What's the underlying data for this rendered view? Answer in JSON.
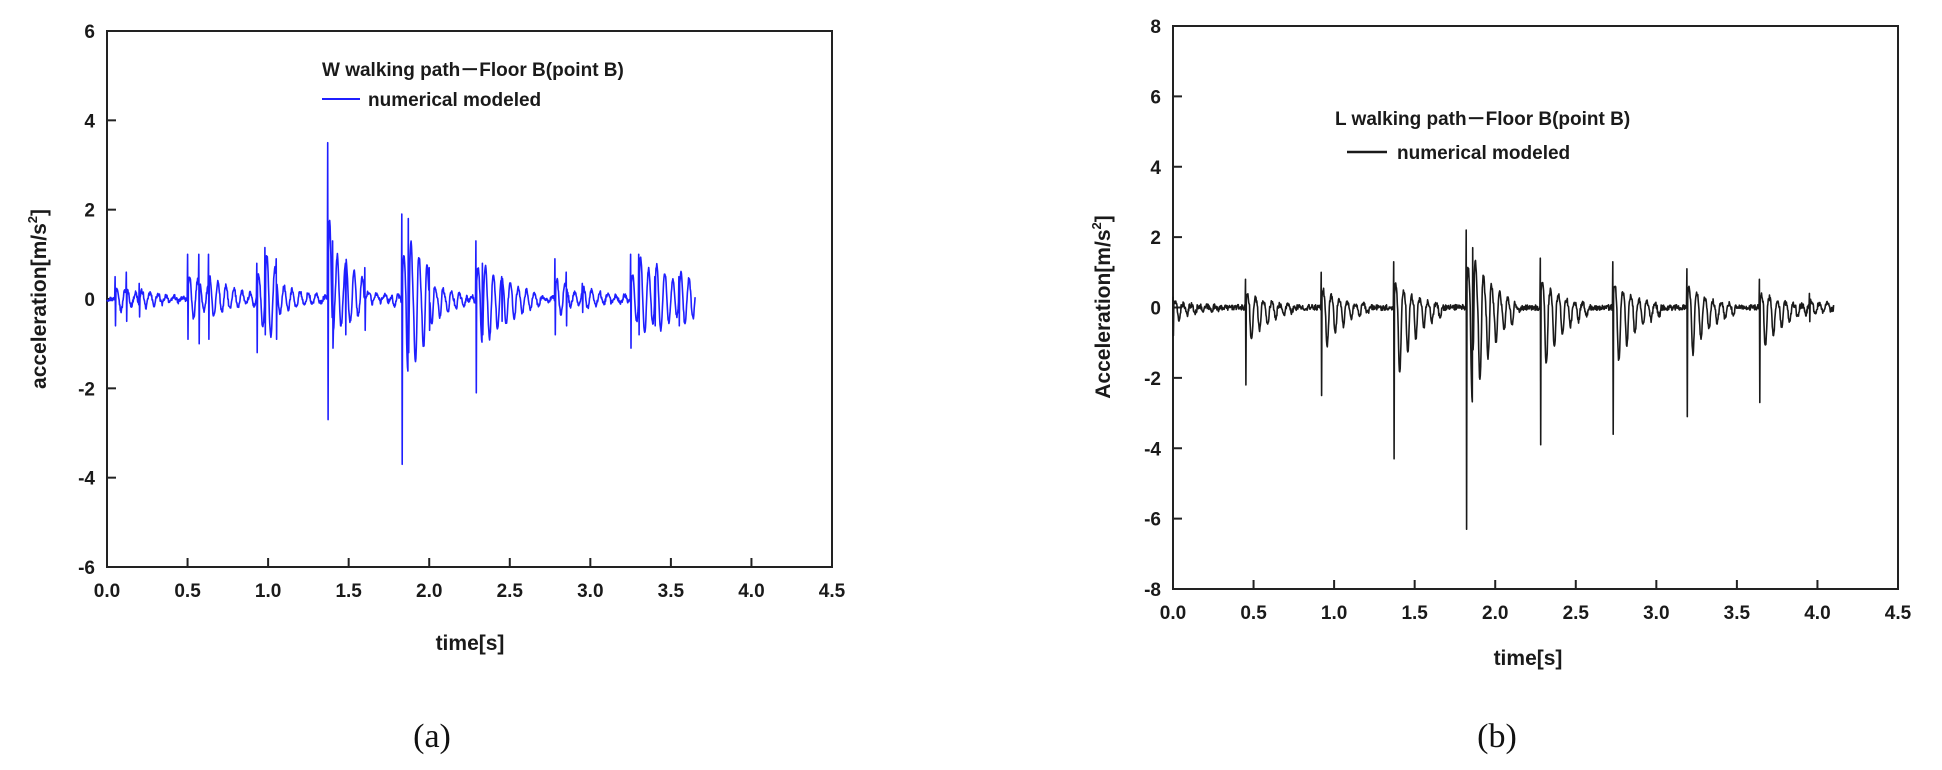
{
  "chart_data": [
    {
      "type": "line",
      "panel_label": "(a)",
      "xlabel": "time[s]",
      "ylabel": "acceleration[m/s²]",
      "ylabel_parts": {
        "main": "acceleration[m/s",
        "sup": "2",
        "end": "]"
      },
      "xlim": [
        0.0,
        4.5
      ],
      "ylim": [
        -6,
        6
      ],
      "xticks": [
        "0.0",
        "0.5",
        "1.0",
        "1.5",
        "2.0",
        "2.5",
        "3.0",
        "3.5",
        "4.0",
        "4.5"
      ],
      "yticks": [
        "-6",
        "-4",
        "-2",
        "0",
        "2",
        "4",
        "6"
      ],
      "grid": false,
      "legend_position": "top-center",
      "legend_title": "W walking path－Floor B(point B)",
      "series": [
        {
          "name": "numerical modeled",
          "color": "#1f1fff",
          "x_end": 3.65,
          "noise_amplitude": 0.05,
          "oscillation": {
            "period": 0.05,
            "decay": 0.4
          },
          "events": [
            {
              "t": 0.05,
              "peak": 0.5,
              "trough": -0.6
            },
            {
              "t": 0.12,
              "peak": 0.6,
              "trough": -0.5
            },
            {
              "t": 0.2,
              "peak": 0.35,
              "trough": -0.4
            },
            {
              "t": 0.5,
              "peak": 1.0,
              "trough": -0.9
            },
            {
              "t": 0.57,
              "peak": 1.0,
              "trough": -1.0
            },
            {
              "t": 0.63,
              "peak": 1.0,
              "trough": -0.9
            },
            {
              "t": 0.93,
              "peak": 0.8,
              "trough": -1.2
            },
            {
              "t": 0.98,
              "peak": 1.15,
              "trough": -0.8
            },
            {
              "t": 1.05,
              "peak": 0.9,
              "trough": -0.9
            },
            {
              "t": 1.37,
              "peak": 3.5,
              "trough": -2.7
            },
            {
              "t": 1.4,
              "peak": 1.3,
              "trough": -1.1
            },
            {
              "t": 1.48,
              "peak": 0.8,
              "trough": -0.8
            },
            {
              "t": 1.6,
              "peak": 0.7,
              "trough": -0.7
            },
            {
              "t": 1.83,
              "peak": 1.9,
              "trough": -3.7
            },
            {
              "t": 1.87,
              "peak": 1.8,
              "trough": -1.2
            },
            {
              "t": 2.0,
              "peak": 0.7,
              "trough": -0.7
            },
            {
              "t": 2.29,
              "peak": 1.3,
              "trough": -2.1
            },
            {
              "t": 2.33,
              "peak": 0.8,
              "trough": -0.8
            },
            {
              "t": 2.45,
              "peak": 0.5,
              "trough": -0.5
            },
            {
              "t": 2.78,
              "peak": 0.9,
              "trough": -0.8
            },
            {
              "t": 2.85,
              "peak": 0.6,
              "trough": -0.6
            },
            {
              "t": 2.95,
              "peak": 0.35,
              "trough": -0.3
            },
            {
              "t": 3.25,
              "peak": 1.0,
              "trough": -1.1
            },
            {
              "t": 3.3,
              "peak": 1.0,
              "trough": -0.8
            },
            {
              "t": 3.4,
              "peak": 0.5,
              "trough": -0.6
            },
            {
              "t": 3.55,
              "peak": 0.5,
              "trough": -0.6
            }
          ]
        }
      ]
    },
    {
      "type": "line",
      "panel_label": "(b)",
      "xlabel": "time[s]",
      "ylabel": "Acceleration[m/s²]",
      "ylabel_parts": {
        "main": "Acceleration[m/s",
        "sup": "2",
        "end": "]"
      },
      "xlim": [
        0.0,
        4.5
      ],
      "ylim": [
        -8,
        8
      ],
      "xticks": [
        "0.0",
        "0.5",
        "1.0",
        "1.5",
        "2.0",
        "2.5",
        "3.0",
        "3.5",
        "4.0",
        "4.5"
      ],
      "yticks": [
        "-8",
        "-6",
        "-4",
        "-2",
        "0",
        "2",
        "4",
        "6",
        "8"
      ],
      "grid": false,
      "legend_position": "top-center",
      "legend_title": "L walking path－Floor B(point B)",
      "series": [
        {
          "name": "numerical modeled",
          "color": "#1a1a1a",
          "x_end": 4.1,
          "noise_amplitude": 0.08,
          "oscillation": {
            "period": 0.05,
            "decay": 0.3
          },
          "events": [
            {
              "t": 0.0,
              "peak": 0.3,
              "trough": -0.8
            },
            {
              "t": 0.45,
              "peak": 0.8,
              "trough": -2.2
            },
            {
              "t": 0.92,
              "peak": 1.0,
              "trough": -2.5
            },
            {
              "t": 1.37,
              "peak": 1.3,
              "trough": -4.3
            },
            {
              "t": 1.82,
              "peak": 2.2,
              "trough": -6.3
            },
            {
              "t": 1.86,
              "peak": 1.7,
              "trough": -1.2
            },
            {
              "t": 2.28,
              "peak": 1.4,
              "trough": -3.9
            },
            {
              "t": 2.73,
              "peak": 1.3,
              "trough": -3.6
            },
            {
              "t": 3.19,
              "peak": 1.1,
              "trough": -3.1
            },
            {
              "t": 3.64,
              "peak": 0.8,
              "trough": -2.7
            },
            {
              "t": 3.95,
              "peak": 0.4,
              "trough": -0.4
            }
          ]
        }
      ]
    }
  ]
}
